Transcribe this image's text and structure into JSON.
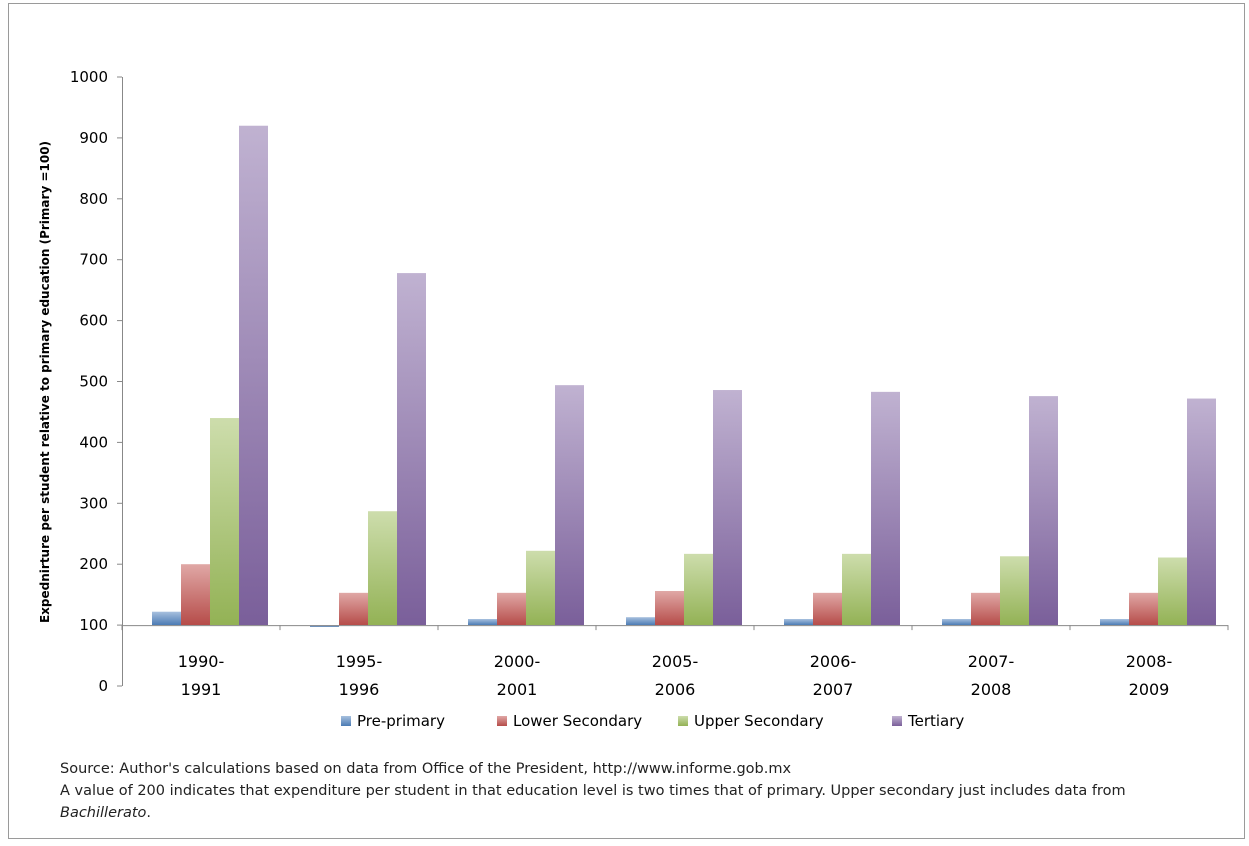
{
  "chart_data": {
    "type": "bar",
    "title": "",
    "xlabel": "",
    "ylabel": "Expednirture per student relative to primary education  (Primary =100)",
    "ylim": [
      0,
      1000
    ],
    "yticks": [
      "0",
      "100",
      "200",
      "300",
      "400",
      "500",
      "600",
      "700",
      "800",
      "900",
      "1000"
    ],
    "baseline": 100,
    "grid": false,
    "legend_position": "bottom",
    "categories": [
      [
        "1990-",
        "1991"
      ],
      [
        "1995-",
        "1996"
      ],
      [
        "2000-",
        "2001"
      ],
      [
        "2005-",
        "2006"
      ],
      [
        "2006-",
        "2007"
      ],
      [
        "2007-",
        "2008"
      ],
      [
        "2008-",
        "2009"
      ]
    ],
    "series": [
      {
        "name": "Pre-primary",
        "color": "#4f81bd",
        "values": [
          122,
          97,
          110,
          113,
          110,
          110,
          110
        ]
      },
      {
        "name": "Lower Secondary",
        "color": "#c0504d",
        "values": [
          200,
          153,
          153,
          156,
          153,
          153,
          153
        ]
      },
      {
        "name": "Upper Secondary",
        "color": "#9bbb59",
        "values": [
          440,
          287,
          222,
          217,
          217,
          213,
          211
        ]
      },
      {
        "name": "Tertiary",
        "color": "#8064a2",
        "values": [
          920,
          678,
          494,
          486,
          483,
          476,
          472
        ]
      }
    ]
  },
  "notes": {
    "source": "Source: Author's calculations based on data from Office of the President, http://www.informe.gob.mx",
    "explanation": "A value of 200 indicates that expenditure per student in that education level is two times that of primary. Upper secondary just includes data from",
    "explanation_italic": "Bachillerato",
    "explanation_end": "."
  }
}
